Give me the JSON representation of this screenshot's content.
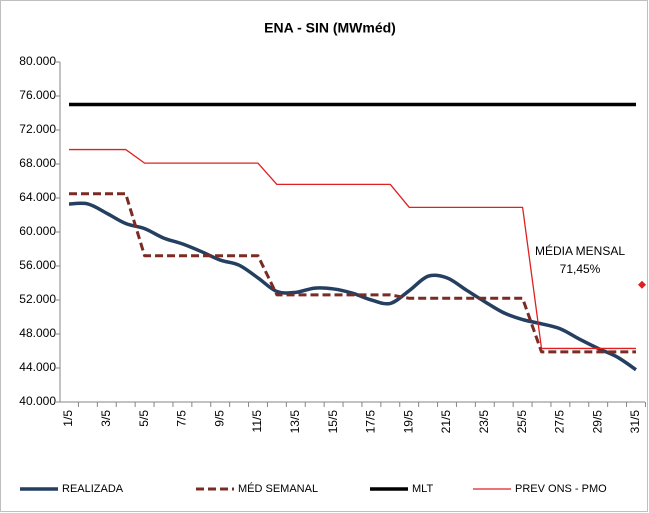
{
  "chart_data": {
    "type": "line",
    "title": "ENA - SIN (MWméd)",
    "categories": [
      "1/5",
      null,
      "3/5",
      null,
      "5/5",
      null,
      "7/5",
      null,
      "9/5",
      null,
      "11/5",
      null,
      "13/5",
      null,
      "15/5",
      null,
      "17/5",
      null,
      "19/5",
      null,
      "21/5",
      null,
      "23/5",
      null,
      "25/5",
      null,
      "27/5",
      null,
      "29/5",
      null,
      "31/5"
    ],
    "ylim": [
      40000,
      80000
    ],
    "yticks": [
      {
        "value": 40000,
        "label": "40.000"
      },
      {
        "value": 44000,
        "label": "44.000"
      },
      {
        "value": 48000,
        "label": "48.000"
      },
      {
        "value": 52000,
        "label": "52.000"
      },
      {
        "value": 56000,
        "label": "56.000"
      },
      {
        "value": 60000,
        "label": "60.000"
      },
      {
        "value": 64000,
        "label": "64.000"
      },
      {
        "value": 68000,
        "label": "68.000"
      },
      {
        "value": 72000,
        "label": "72.000"
      },
      {
        "value": 76000,
        "label": "76.000"
      },
      {
        "value": 80000,
        "label": "80.000"
      }
    ],
    "series": [
      {
        "name": "REALIZADA",
        "color": "#243f60",
        "style": "smooth",
        "values": [
          63300,
          63300,
          62200,
          61000,
          60400,
          59300,
          58600,
          57700,
          56700,
          56100,
          54600,
          53000,
          52900,
          53400,
          53300,
          52800,
          52000,
          51600,
          53100,
          54800,
          54600,
          53200,
          51800,
          50500,
          49700,
          49200,
          48600,
          47400,
          46300,
          45300,
          43800
        ]
      },
      {
        "name": "MÉD SEMANAL",
        "color": "#7b2b24",
        "style": "dashed",
        "values": [
          64500,
          64500,
          64500,
          64500,
          57200,
          57200,
          57200,
          57200,
          57200,
          57200,
          57200,
          52600,
          52600,
          52600,
          52600,
          52600,
          52600,
          52600,
          52200,
          52200,
          52200,
          52200,
          52200,
          52200,
          52200,
          45900,
          45900,
          45900,
          45900,
          45900,
          45900
        ]
      },
      {
        "name": "MLT",
        "color": "#000000",
        "style": "thick",
        "values": [
          75000,
          75000,
          75000,
          75000,
          75000,
          75000,
          75000,
          75000,
          75000,
          75000,
          75000,
          75000,
          75000,
          75000,
          75000,
          75000,
          75000,
          75000,
          75000,
          75000,
          75000,
          75000,
          75000,
          75000,
          75000,
          75000,
          75000,
          75000,
          75000,
          75000,
          75000
        ]
      },
      {
        "name": "PREV ONS - PMO",
        "color": "#e02020",
        "style": "thin",
        "values": [
          69700,
          69700,
          69700,
          69700,
          68100,
          68100,
          68100,
          68100,
          68100,
          68100,
          68100,
          65600,
          65600,
          65600,
          65600,
          65600,
          65600,
          65600,
          62900,
          62900,
          62900,
          62900,
          62900,
          62900,
          62900,
          46300,
          46300,
          46300,
          46300,
          46300,
          46300
        ]
      }
    ],
    "annotation": {
      "text": [
        "MÉDIA MENSAL",
        "71,45%"
      ],
      "value": 53800,
      "color": "#e02020"
    }
  }
}
